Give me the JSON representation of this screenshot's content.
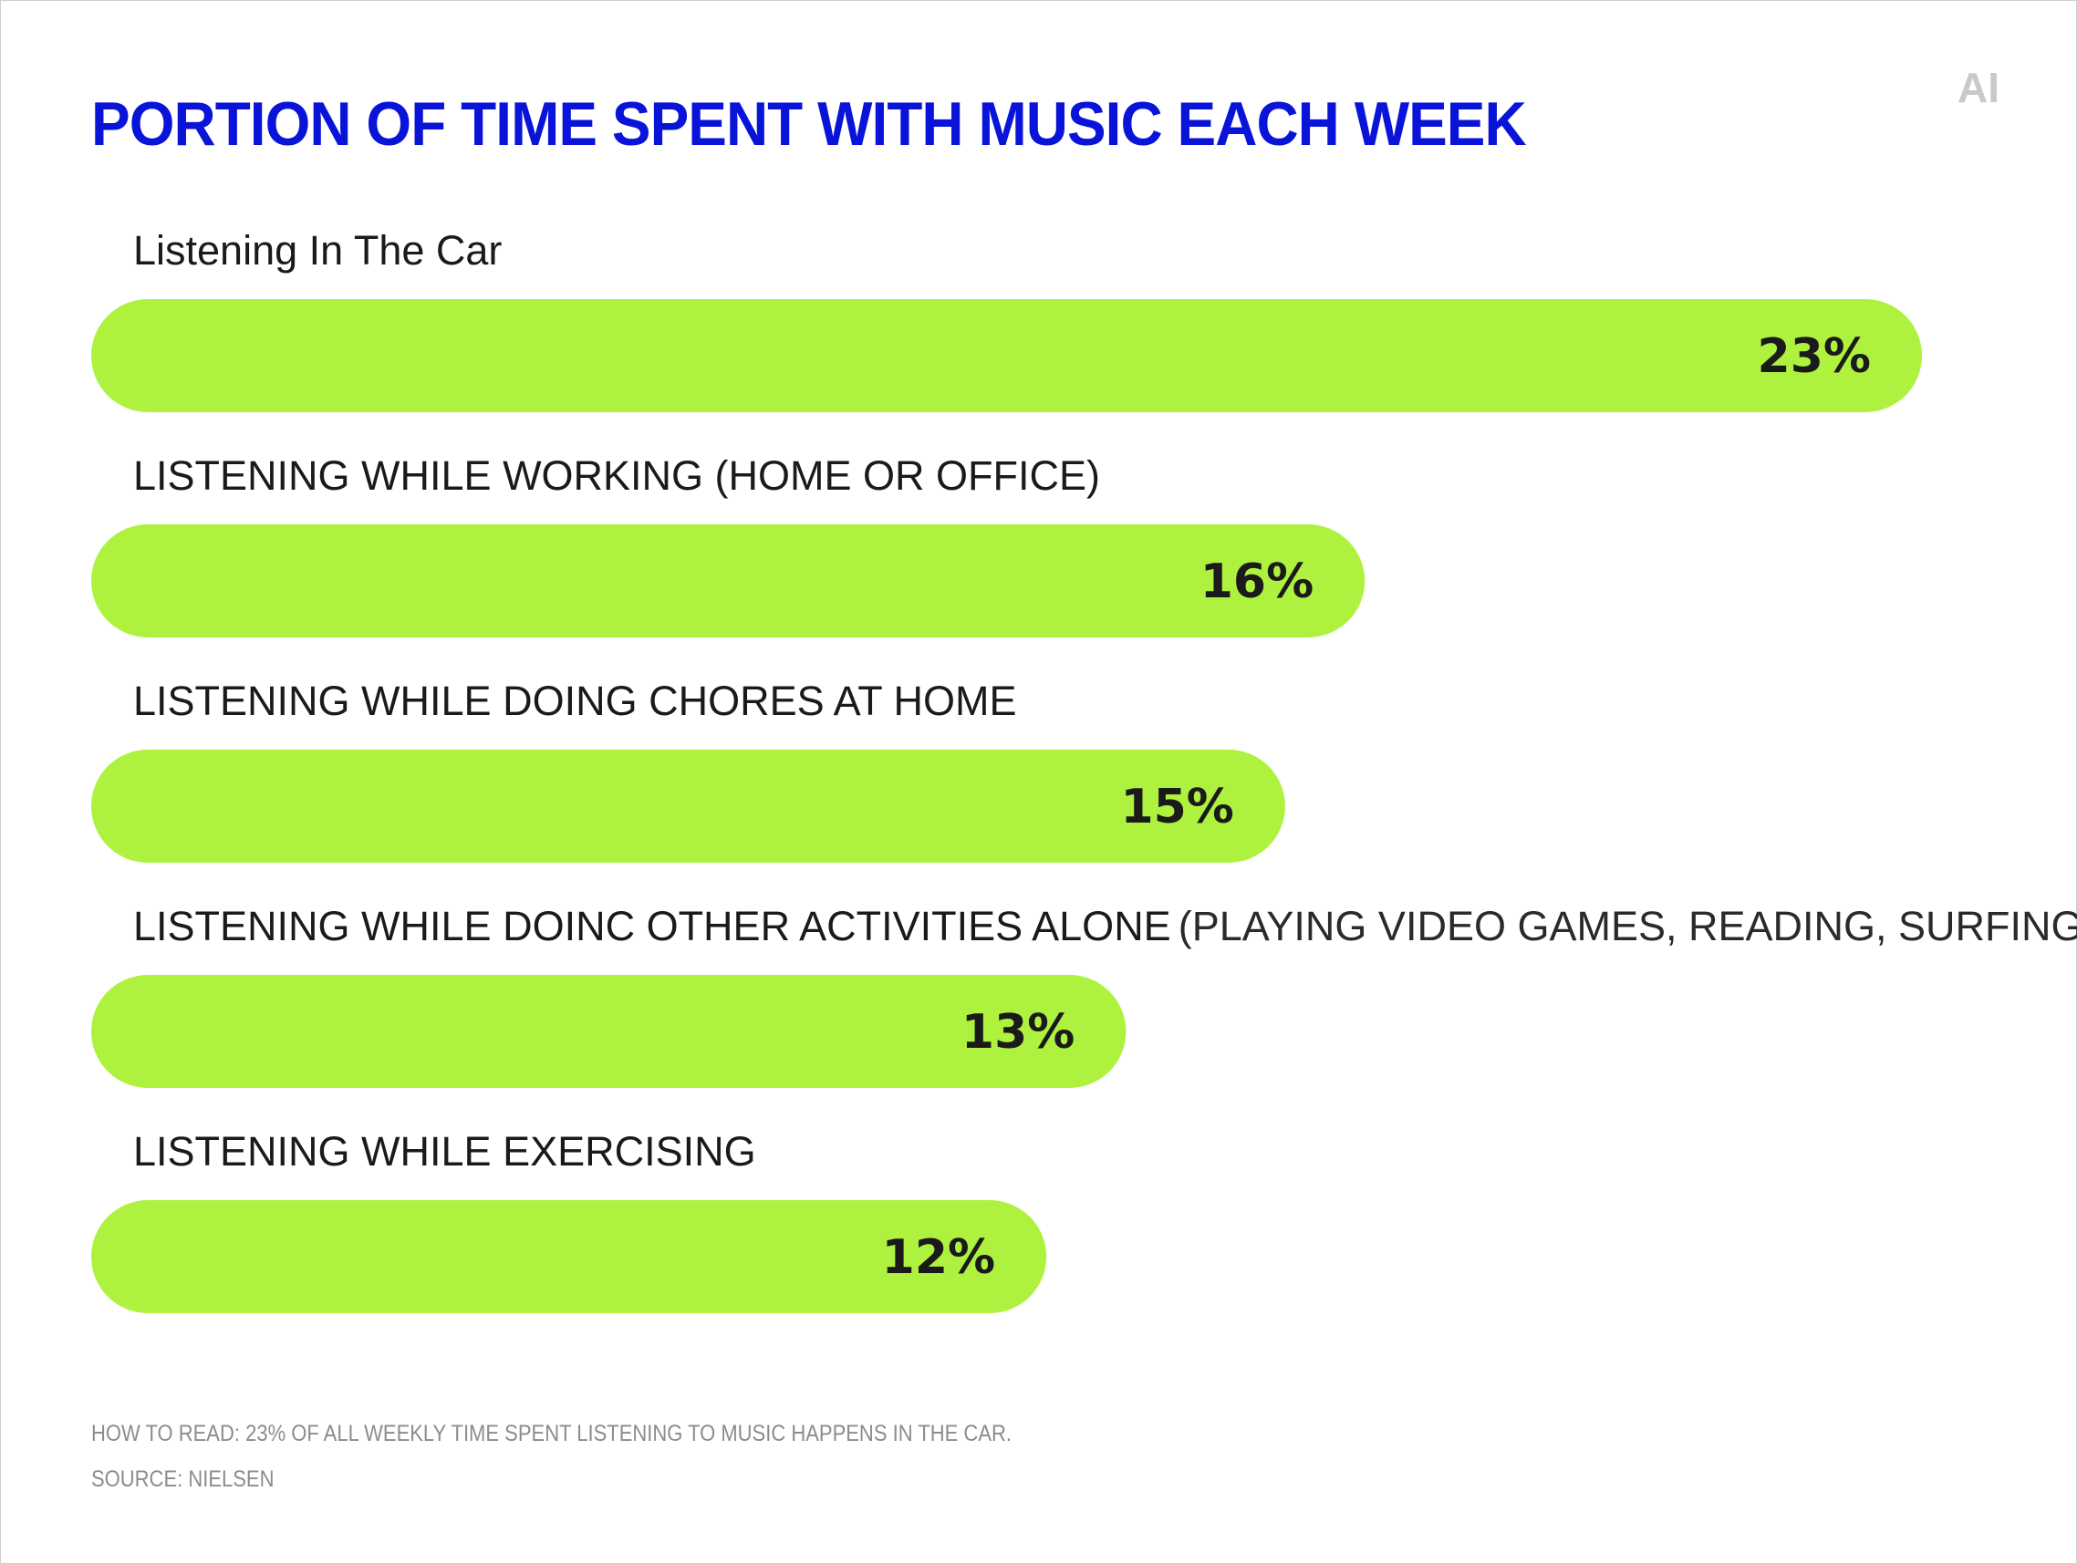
{
  "title": "PORTION OF TIME SPENT WITH MUSIC EACH WEEK",
  "logo_text": "AI",
  "colors": {
    "title": "#0a14d8",
    "bar": "#aef23f",
    "text": "#1a1a1a",
    "footnote": "#8c8c8c"
  },
  "chart_data": {
    "type": "bar",
    "orientation": "horizontal",
    "title": "PORTION OF TIME SPENT WITH MUSIC EACH WEEK",
    "categories": [
      {
        "main": "Listening In The Car",
        "detail": ""
      },
      {
        "main": "LISTENING WHILE WORKING (HOME OR OFFICE)",
        "detail": ""
      },
      {
        "main": "LISTENING WHILE DOING CHORES AT HOME",
        "detail": ""
      },
      {
        "main": "LISTENING WHILE DOINC OTHER ACTIVITIES ALONE",
        "detail": "(PLAYING VIDEO GAMES, READING, SURFING THE WEB)"
      },
      {
        "main": "LISTENING WHILE EXERCISING",
        "detail": ""
      }
    ],
    "values": [
      23,
      16,
      15,
      13,
      12
    ],
    "value_labels": [
      "23%",
      "16%",
      "15%",
      "13%",
      "12%"
    ],
    "unit": "%",
    "grid": false,
    "legend": "none"
  },
  "footnotes": {
    "how_to_read": "HOW TO READ: 23% OF ALL WEEKLY TIME SPENT LISTENING TO MUSIC HAPPENS IN THE CAR.",
    "source": "SOURCE: NIELSEN"
  }
}
